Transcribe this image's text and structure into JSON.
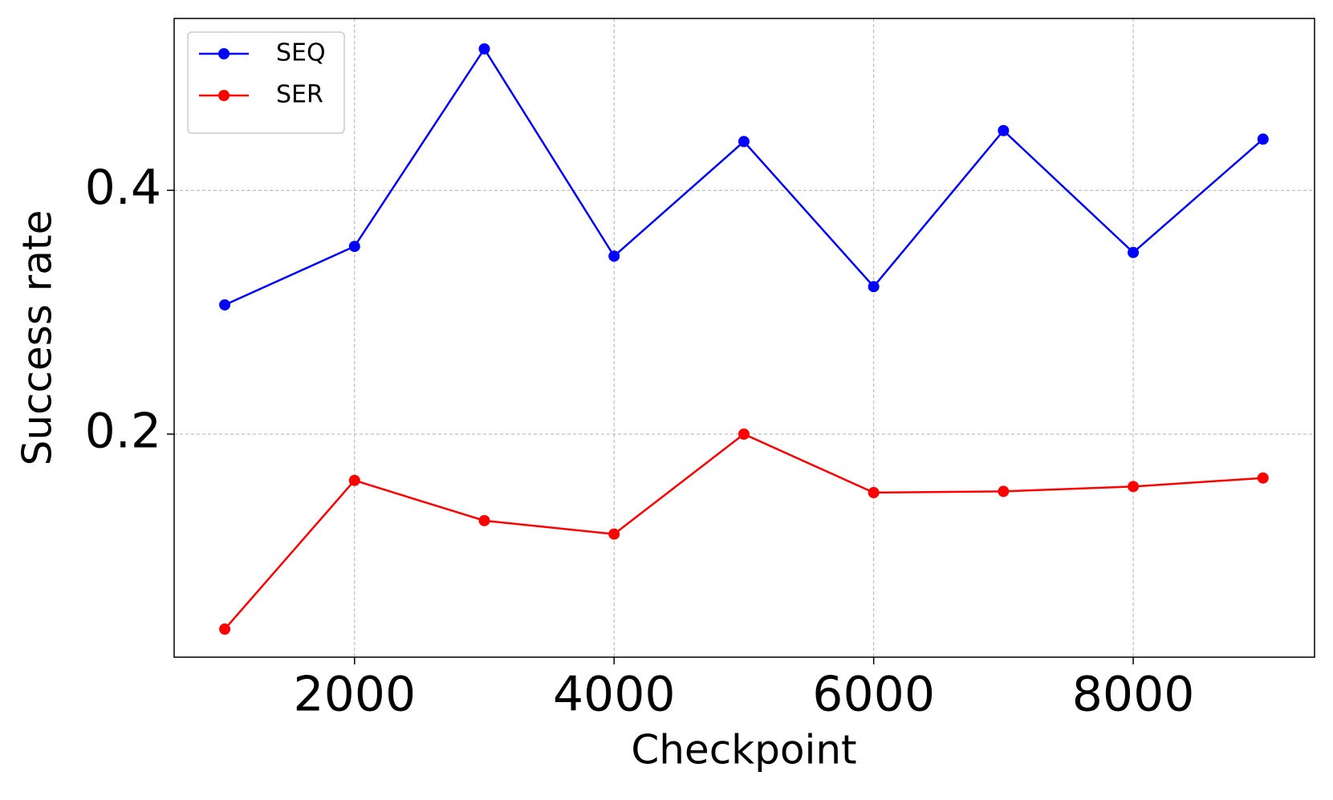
{
  "chart_data": {
    "type": "line",
    "x_label": "Checkpoint",
    "y_label": "Success rate",
    "x": [
      1000,
      2000,
      3000,
      4000,
      5000,
      6000,
      7000,
      8000,
      9000
    ],
    "series": [
      {
        "name": "SEQ",
        "color": "#0000ff",
        "values": [
          0.306,
          0.354,
          0.516,
          0.346,
          0.44,
          0.321,
          0.449,
          0.349,
          0.442
        ]
      },
      {
        "name": "SER",
        "color": "#ff0000",
        "values": [
          0.04,
          0.162,
          0.129,
          0.118,
          0.2,
          0.152,
          0.153,
          0.157,
          0.164
        ]
      }
    ],
    "xlim": [
      610,
      9397
    ],
    "ylim": [
      0.017,
      0.541
    ],
    "xticks": [
      2000,
      4000,
      6000,
      8000
    ],
    "yticks": [
      0.2,
      0.4
    ],
    "grid": true,
    "legend": "upper left"
  }
}
